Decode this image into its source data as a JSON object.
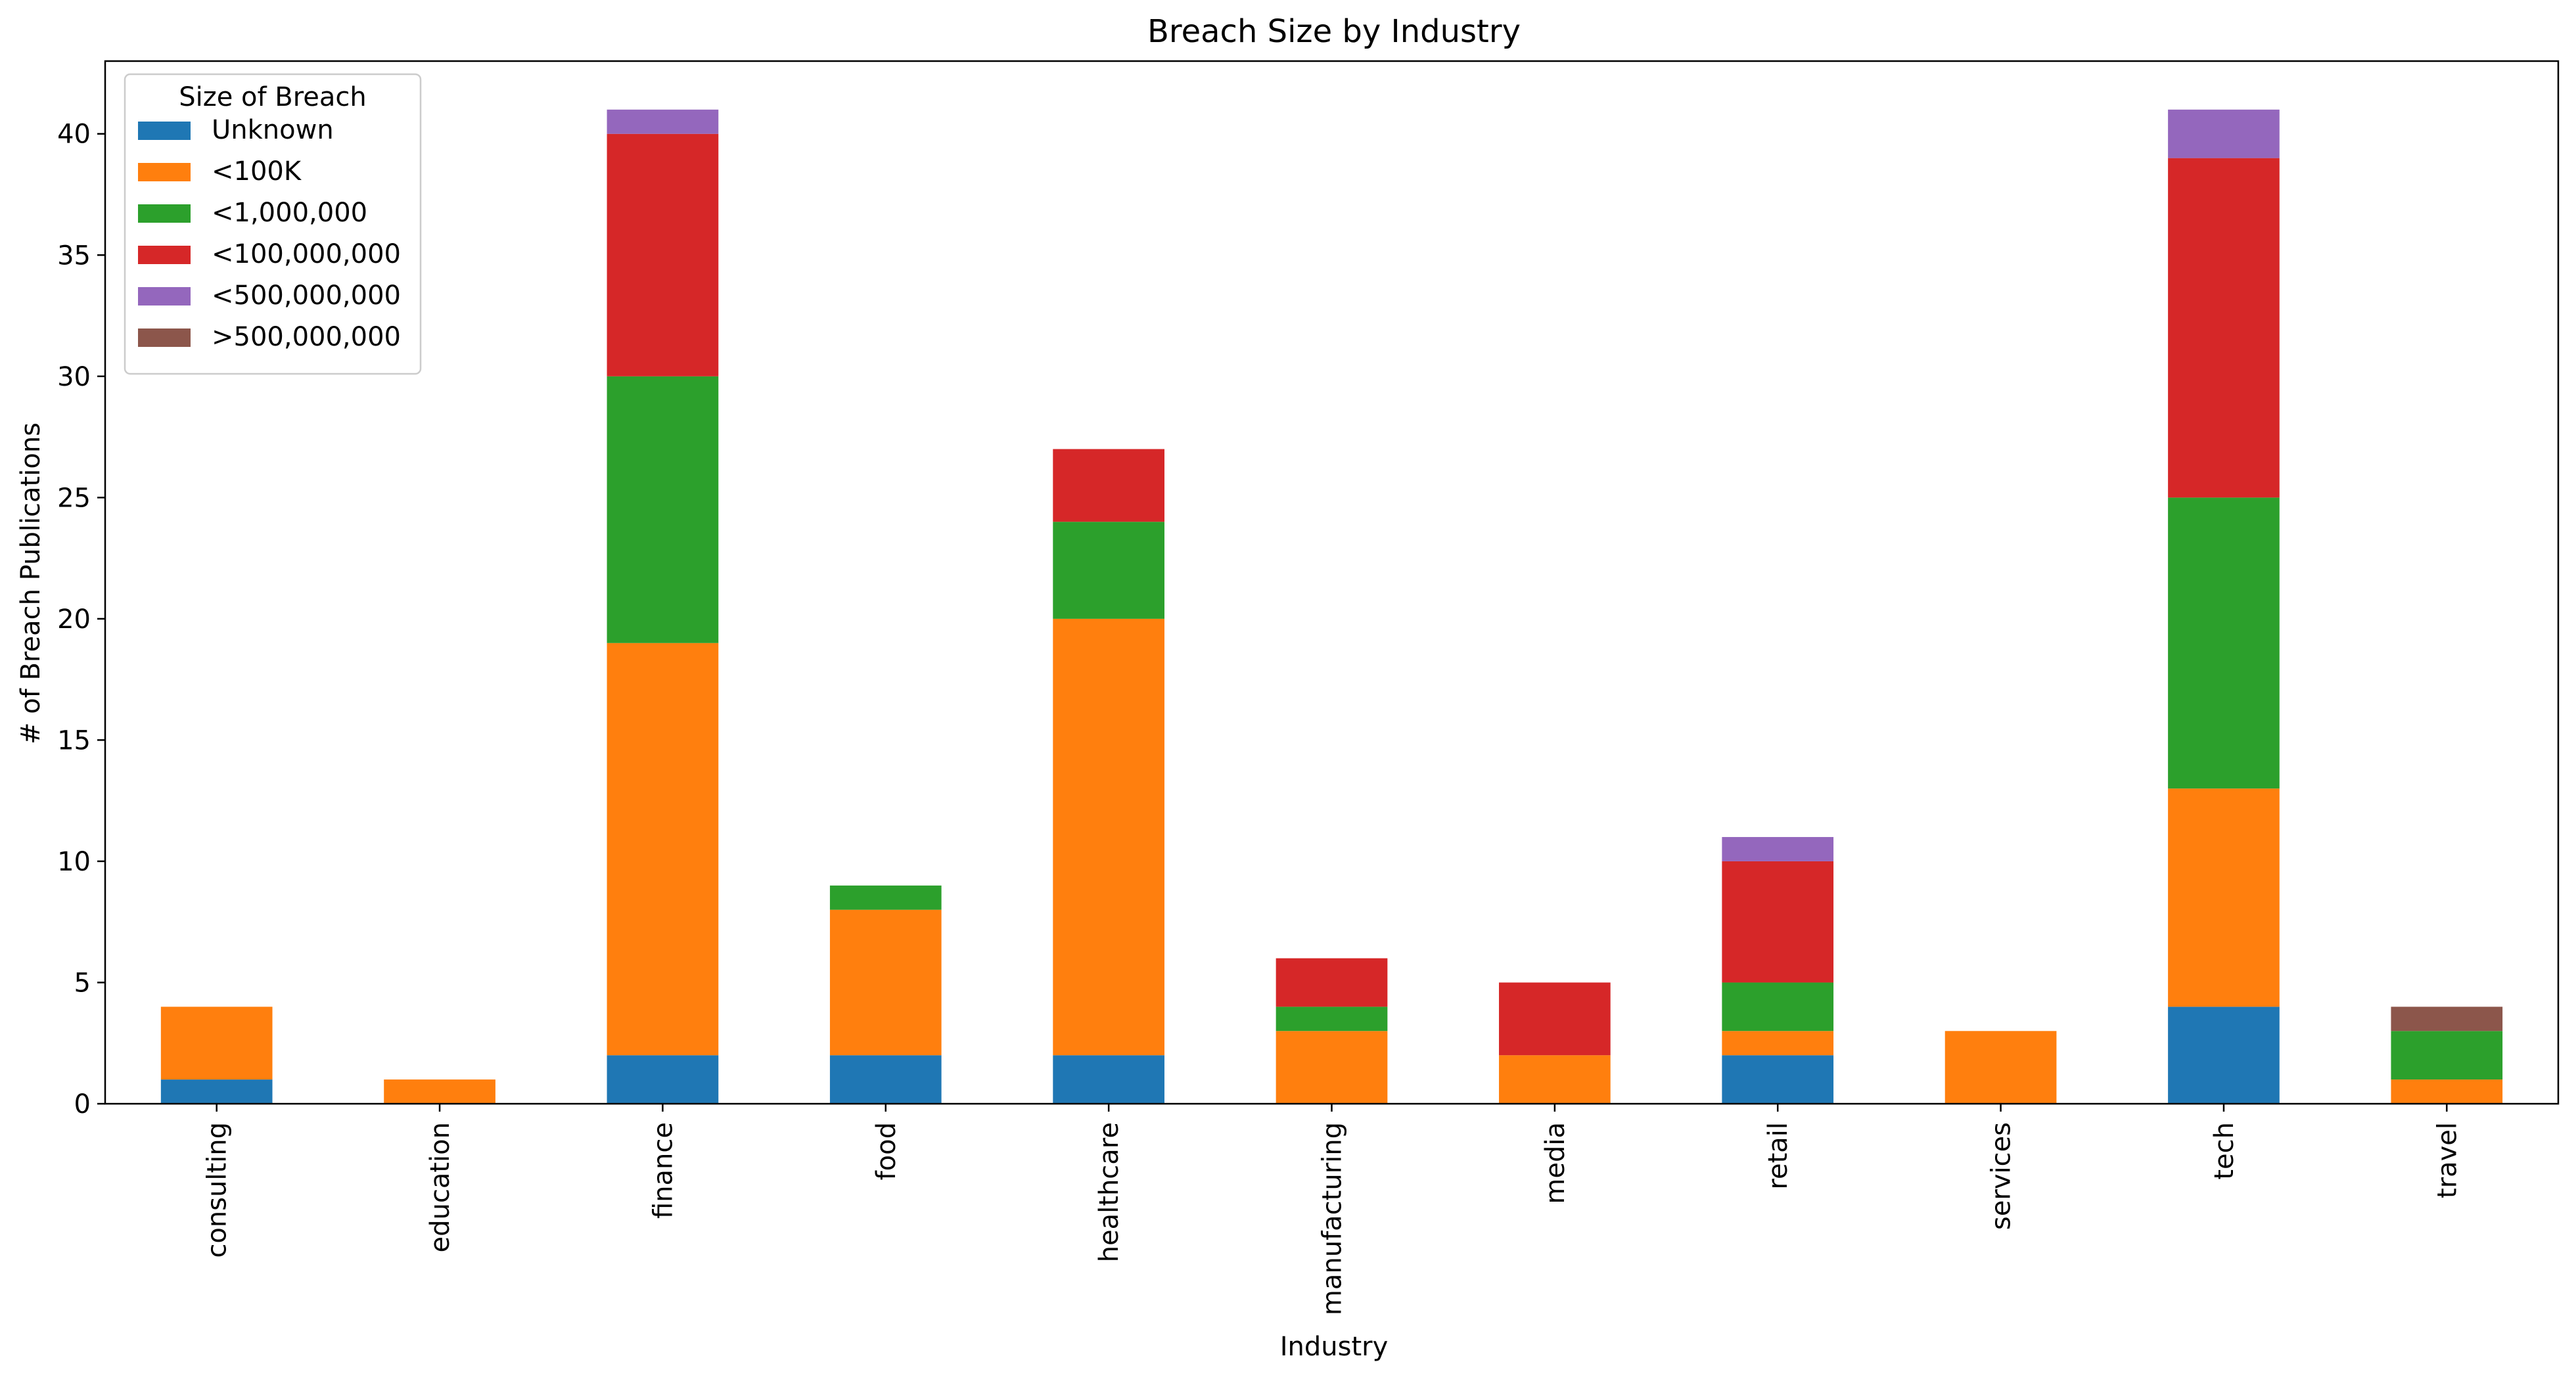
{
  "chart_data": {
    "type": "bar",
    "stacked": true,
    "title": "Breach Size by Industry",
    "xlabel": "Industry",
    "ylabel": "# of Breach Publications",
    "ylim": [
      0,
      43
    ],
    "yticks": [
      0,
      5,
      10,
      15,
      20,
      25,
      30,
      35,
      40
    ],
    "grid": false,
    "legend": {
      "title": "Size of Breach",
      "placement": "top-left"
    },
    "categories": [
      "consulting",
      "education",
      "finance",
      "food",
      "healthcare",
      "manufacturing",
      "media",
      "retail",
      "services",
      "tech",
      "travel"
    ],
    "series": [
      {
        "name": "Unknown",
        "color": "#1f77b4",
        "values": [
          1,
          0,
          2,
          2,
          2,
          0,
          0,
          2,
          0,
          4,
          0
        ]
      },
      {
        "name": "<100K",
        "color": "#ff7f0e",
        "values": [
          3,
          1,
          17,
          6,
          18,
          3,
          2,
          1,
          3,
          9,
          1
        ]
      },
      {
        "name": "<1,000,000",
        "color": "#2ca02c",
        "values": [
          0,
          0,
          11,
          1,
          4,
          1,
          0,
          2,
          0,
          12,
          2
        ]
      },
      {
        "name": "<100,000,000",
        "color": "#d62728",
        "values": [
          0,
          0,
          10,
          0,
          3,
          2,
          3,
          5,
          0,
          14,
          0
        ]
      },
      {
        "name": "<500,000,000",
        "color": "#9467bd",
        "values": [
          0,
          0,
          1,
          0,
          0,
          0,
          0,
          1,
          0,
          2,
          0
        ]
      },
      {
        "name": ">500,000,000",
        "color": "#8c564b",
        "values": [
          0,
          0,
          0,
          0,
          0,
          0,
          0,
          0,
          0,
          0,
          1
        ]
      }
    ]
  }
}
